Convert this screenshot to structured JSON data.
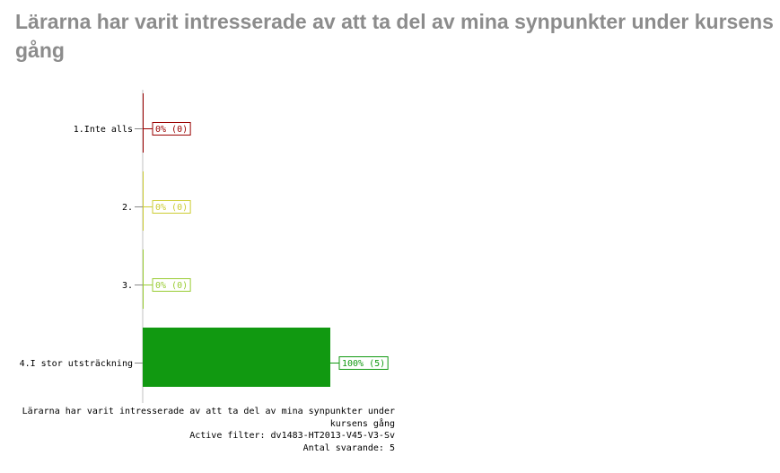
{
  "title": "Lärarna har varit intresserade av att ta del av mina synpunkter under kursens gång",
  "chart_data": {
    "type": "bar",
    "orientation": "horizontal",
    "categories": [
      "1.Inte alls",
      "2.",
      "3.",
      "4.I stor utsträckning"
    ],
    "values": [
      0,
      0,
      0,
      100
    ],
    "counts": [
      0,
      0,
      0,
      5
    ],
    "data_labels": [
      "0% (0)",
      "0% (0)",
      "0% (0)",
      "100% (5)"
    ],
    "colors": [
      "#990000",
      "#cccc33",
      "#99cc33",
      "#119911"
    ],
    "xlim": [
      0,
      100
    ]
  },
  "footer": {
    "caption_line1": "Lärarna har varit intresserade av att ta del av mina synpunkter under",
    "caption_line2": "kursens gång",
    "filter": "Active filter: dv1483-HT2013-V45-V3-Sv",
    "respondents": "Antal svarande: 5"
  }
}
